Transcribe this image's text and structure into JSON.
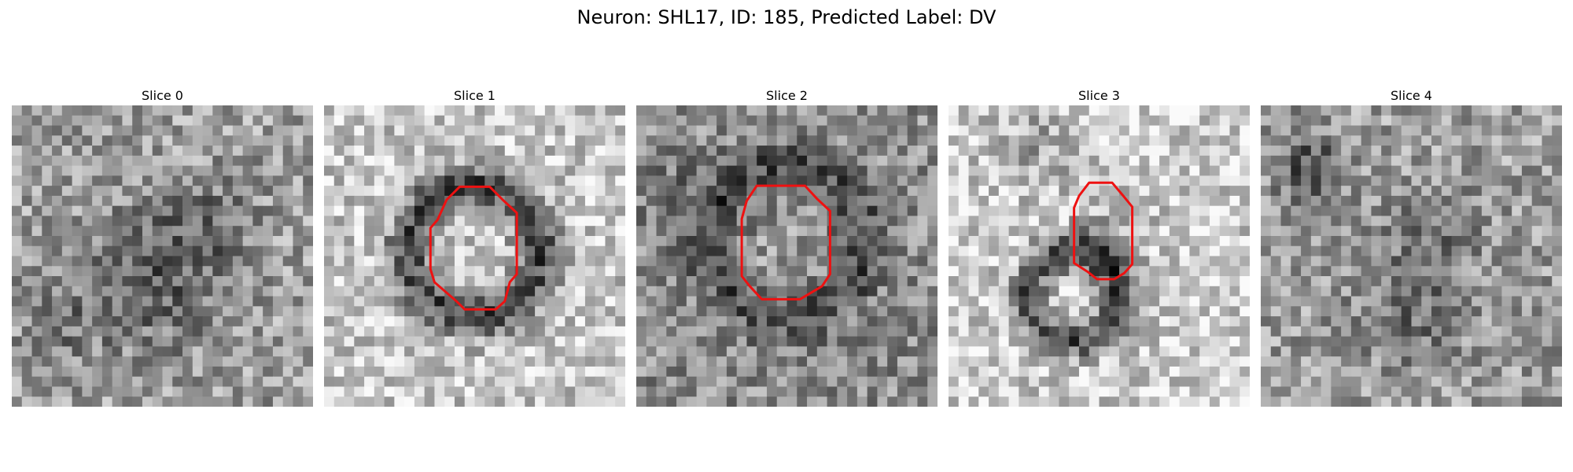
{
  "figure": {
    "title": "Neuron: SHL17, ID: 185, Predicted Label: DV"
  },
  "colors": {
    "roi_outline": "#ee1111",
    "colormap": "grayscale"
  },
  "panels": [
    {
      "title": "Slice 0",
      "has_roi": false
    },
    {
      "title": "Slice 1",
      "has_roi": true
    },
    {
      "title": "Slice 2",
      "has_roi": true
    },
    {
      "title": "Slice 3",
      "has_roi": true
    },
    {
      "title": "Slice 4",
      "has_roi": false
    }
  ]
}
